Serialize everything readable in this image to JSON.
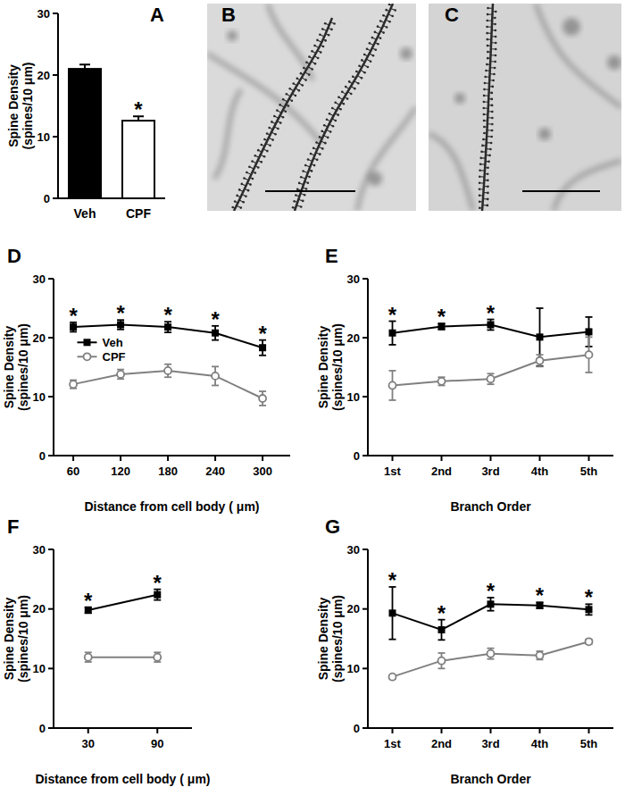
{
  "chart_data": [
    {
      "type": "bar",
      "title": "A",
      "ylabel": [
        "Spine Density",
        "(spines/10 μm)"
      ],
      "categories": [
        "Veh",
        "CPF"
      ],
      "values": [
        21.0,
        12.6
      ],
      "errors": [
        0.7,
        0.7
      ],
      "colors": [
        "#000000",
        "#ffffff"
      ],
      "significance": [
        null,
        "*"
      ],
      "ylim": [
        0,
        30
      ],
      "yticks": [
        0,
        10,
        20,
        30
      ]
    },
    {
      "type": "line",
      "title": "D",
      "xlabel": "Distance from cell body ( μm)",
      "ylabel": [
        "Spine Density",
        "(spines/10 μm)"
      ],
      "x": [
        60,
        120,
        180,
        240,
        300
      ],
      "xlim": [
        35,
        335
      ],
      "xticks": [
        60,
        120,
        180,
        240,
        300
      ],
      "ylim": [
        0,
        30
      ],
      "yticks": [
        0,
        10,
        20,
        30
      ],
      "legend": "left",
      "series": [
        {
          "name": "Veh",
          "color": "#000000",
          "marker": "square",
          "values": [
            21.8,
            22.2,
            21.8,
            20.8,
            18.3
          ],
          "errors": [
            0.8,
            0.8,
            0.9,
            1.2,
            1.3
          ]
        },
        {
          "name": "CPF",
          "color": "#808080",
          "marker": "circle_open",
          "values": [
            12.1,
            13.8,
            14.4,
            13.5,
            9.7
          ],
          "errors": [
            0.7,
            0.8,
            1.1,
            1.6,
            1.2
          ]
        }
      ],
      "significance": [
        "*",
        "*",
        "*",
        "*",
        "*"
      ]
    },
    {
      "type": "line",
      "title": "E",
      "xlabel": "Branch Order",
      "ylabel": [
        "Spine Density",
        "(spines/10 μm)"
      ],
      "categories": [
        "1st",
        "2nd",
        "3rd",
        "4th",
        "5th"
      ],
      "ylim": [
        0,
        30
      ],
      "yticks": [
        0,
        10,
        20,
        30
      ],
      "series": [
        {
          "color": "#000000",
          "marker": "square",
          "values": [
            20.8,
            21.9,
            22.2,
            20.1,
            21.0
          ],
          "errors": [
            2.0,
            0.5,
            0.9,
            4.9,
            2.5
          ]
        },
        {
          "color": "#808080",
          "marker": "circle_open",
          "values": [
            11.9,
            12.6,
            13.0,
            16.1,
            17.1
          ],
          "errors": [
            2.5,
            0.7,
            0.9,
            1.0,
            3.0
          ]
        }
      ],
      "significance": [
        "*",
        "*",
        "*",
        null,
        null
      ]
    },
    {
      "type": "line",
      "title": "F",
      "xlabel": "Distance from cell body ( μm)",
      "ylabel": [
        "Spine Density",
        "(spines/10 μm)"
      ],
      "x": [
        30,
        90
      ],
      "xlim": [
        0,
        120
      ],
      "xticks": [
        30,
        90
      ],
      "ylim": [
        0,
        30
      ],
      "yticks": [
        0,
        10,
        20,
        30
      ],
      "series": [
        {
          "color": "#000000",
          "marker": "square",
          "values": [
            19.8,
            22.4
          ],
          "errors": [
            0.5,
            0.9
          ]
        },
        {
          "color": "#808080",
          "marker": "circle_open",
          "values": [
            11.9,
            11.9
          ],
          "errors": [
            0.8,
            0.8
          ]
        }
      ],
      "significance": [
        "*",
        "*"
      ]
    },
    {
      "type": "line",
      "title": "G",
      "xlabel": "Branch Order",
      "ylabel": [
        "Spine Density",
        "(spines/10 μm)"
      ],
      "categories": [
        "1st",
        "2nd",
        "3rd",
        "4th",
        "5th"
      ],
      "ylim": [
        0,
        30
      ],
      "yticks": [
        0,
        10,
        20,
        30
      ],
      "series": [
        {
          "color": "#000000",
          "marker": "square",
          "values": [
            19.3,
            16.5,
            20.8,
            20.6,
            19.9
          ],
          "errors": [
            4.4,
            1.7,
            1.1,
            0.5,
            0.9
          ]
        },
        {
          "color": "#808080",
          "marker": "circle_open",
          "values": [
            8.6,
            11.3,
            12.5,
            12.2,
            14.5
          ],
          "errors": [
            0.3,
            1.3,
            0.9,
            0.7,
            0.4
          ]
        }
      ],
      "significance": [
        "*",
        "*",
        "*",
        "*",
        "*"
      ]
    }
  ],
  "images": [
    {
      "label": "B"
    },
    {
      "label": "C"
    }
  ]
}
